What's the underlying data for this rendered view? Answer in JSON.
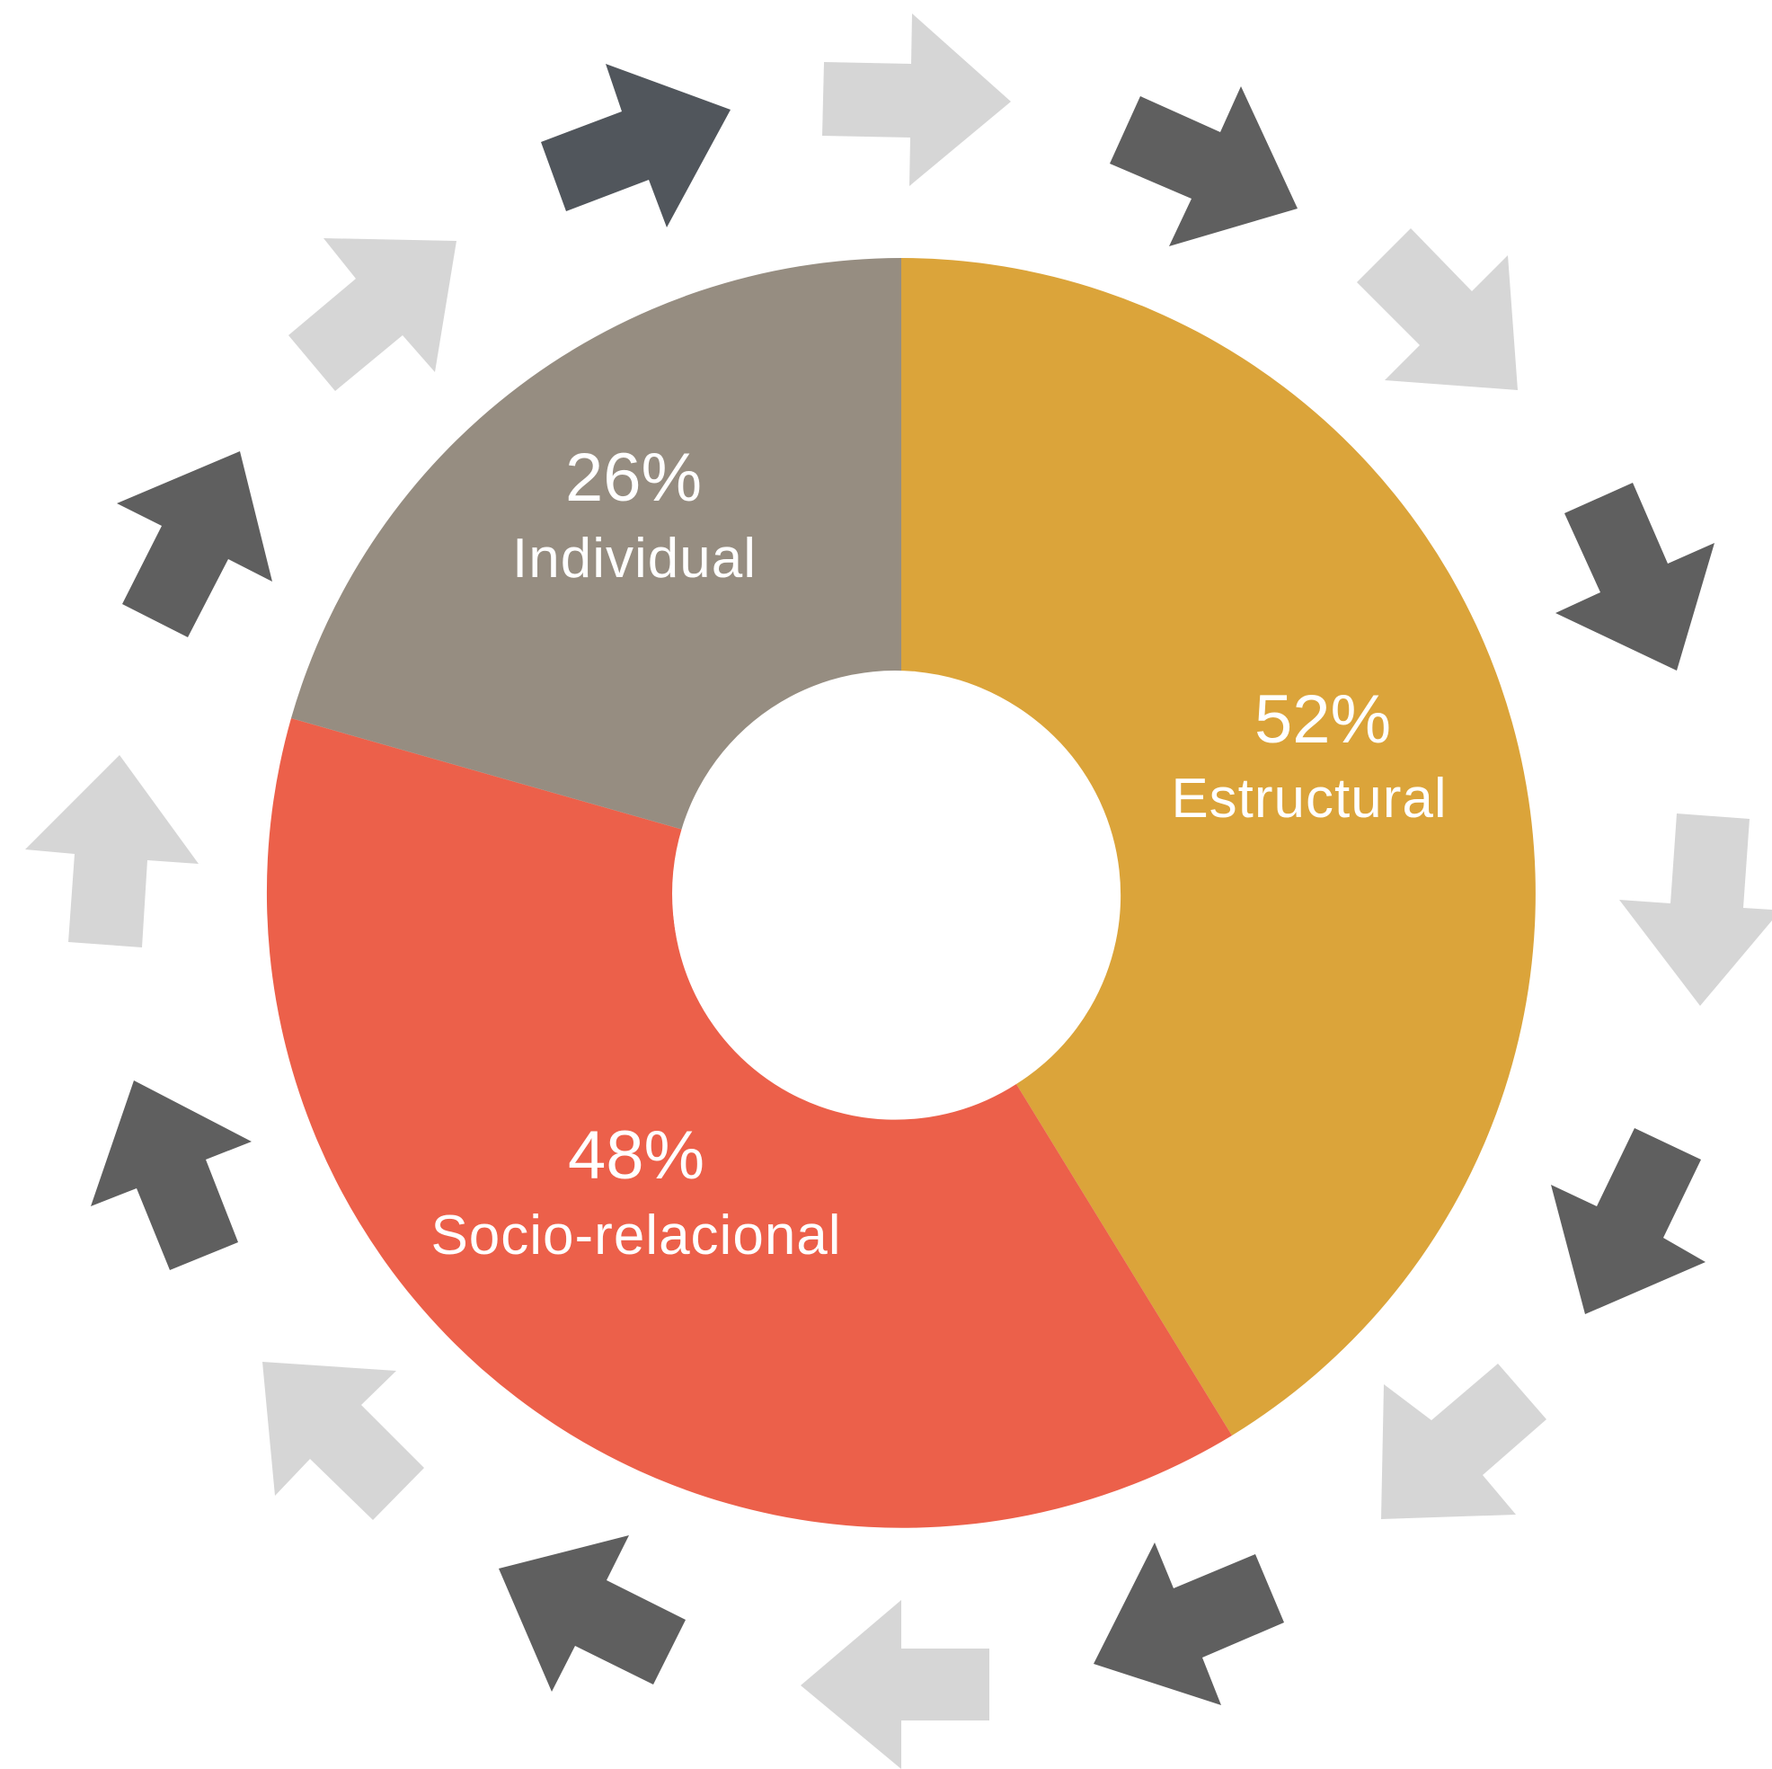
{
  "chart_data": {
    "type": "pie",
    "slices": [
      {
        "label": "Estructural",
        "value_text": "52%",
        "value": 52,
        "color": "#DBA43A"
      },
      {
        "label": "Socio-relacional",
        "value_text": "48%",
        "value": 48,
        "color": "#EC604A"
      },
      {
        "label": "Individual",
        "value_text": "26%",
        "value": 26,
        "color": "#968D81"
      }
    ]
  },
  "colors": {
    "arrow_dark": "#5F5F5F",
    "arrow_darkest": "#51565C",
    "arrow_light": "#D6D6D6",
    "background": "#FFFFFF"
  },
  "decoration": {
    "icon": "arrow-icon",
    "count": 20
  }
}
